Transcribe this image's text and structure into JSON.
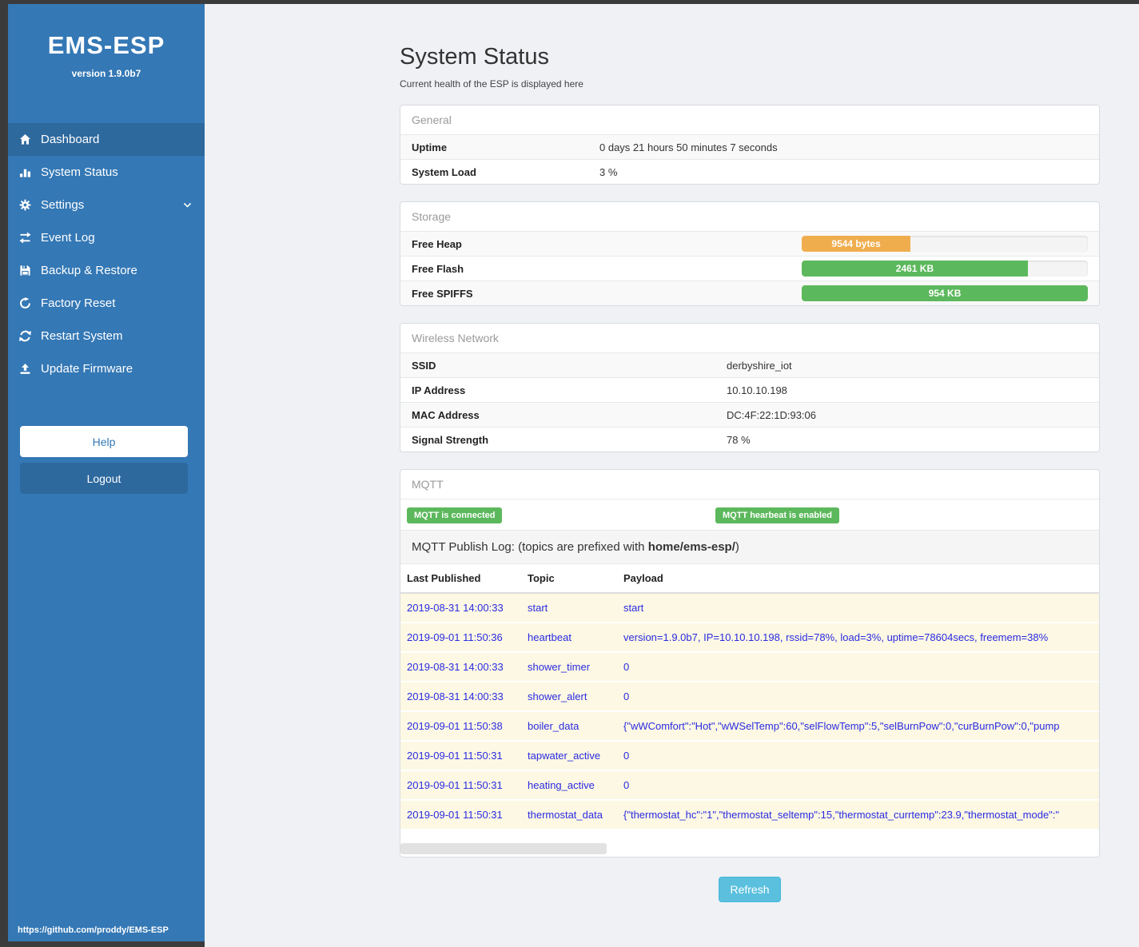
{
  "sidebar": {
    "title": "EMS-ESP",
    "version": "version 1.9.0b7",
    "items": [
      {
        "label": "Dashboard",
        "icon": "home-icon",
        "active": true,
        "chevron": false
      },
      {
        "label": "System Status",
        "icon": "status-icon",
        "active": false,
        "chevron": false
      },
      {
        "label": "Settings",
        "icon": "gear-icon",
        "active": false,
        "chevron": true
      },
      {
        "label": "Event Log",
        "icon": "exchange-icon",
        "active": false,
        "chevron": false
      },
      {
        "label": "Backup & Restore",
        "icon": "save-icon",
        "active": false,
        "chevron": false
      },
      {
        "label": "Factory Reset",
        "icon": "undo-icon",
        "active": false,
        "chevron": false
      },
      {
        "label": "Restart System",
        "icon": "refresh-icon",
        "active": false,
        "chevron": false
      },
      {
        "label": "Update Firmware",
        "icon": "upload-icon",
        "active": false,
        "chevron": false
      }
    ],
    "help_label": "Help",
    "logout_label": "Logout",
    "footer_link": "https://github.com/proddy/EMS-ESP"
  },
  "page": {
    "title": "System Status",
    "subtitle": "Current health of the ESP is displayed here"
  },
  "general": {
    "header": "General",
    "rows": [
      {
        "label": "Uptime",
        "value": "0 days 21 hours 50 minutes 7 seconds"
      },
      {
        "label": "System Load",
        "value": "3 %"
      }
    ]
  },
  "storage": {
    "header": "Storage",
    "rows": [
      {
        "label": "Free Heap",
        "bar_label": "9544 bytes",
        "percent": 38,
        "color": "#f0ad4e"
      },
      {
        "label": "Free Flash",
        "bar_label": "2461 KB",
        "percent": 79,
        "color": "#5cb85c"
      },
      {
        "label": "Free SPIFFS",
        "bar_label": "954 KB",
        "percent": 100,
        "color": "#5cb85c"
      }
    ]
  },
  "wireless": {
    "header": "Wireless Network",
    "rows": [
      {
        "label": "SSID",
        "value": "derbyshire_iot"
      },
      {
        "label": "IP Address",
        "value": "10.10.10.198"
      },
      {
        "label": "MAC Address",
        "value": "DC:4F:22:1D:93:06"
      },
      {
        "label": "Signal Strength",
        "value": "78 %"
      }
    ]
  },
  "mqtt": {
    "header": "MQTT",
    "badges": [
      "MQTT is connected",
      "MQTT hearbeat is enabled"
    ],
    "log_title_prefix": "MQTT Publish Log: (topics are prefixed with ",
    "log_title_bold": "home/ems-esp/",
    "log_title_suffix": ")",
    "table": {
      "columns": [
        "Last Published",
        "Topic",
        "Payload"
      ],
      "rows": [
        [
          "2019-08-31 14:00:33",
          "start",
          "start"
        ],
        [
          "2019-09-01 11:50:36",
          "heartbeat",
          "version=1.9.0b7, IP=10.10.10.198, rssid=78%, load=3%, uptime=78604secs, freemem=38%"
        ],
        [
          "2019-08-31 14:00:33",
          "shower_timer",
          "0"
        ],
        [
          "2019-08-31 14:00:33",
          "shower_alert",
          "0"
        ],
        [
          "2019-09-01 11:50:38",
          "boiler_data",
          "{\"wWComfort\":\"Hot\",\"wWSelTemp\":60,\"selFlowTemp\":5,\"selBurnPow\":0,\"curBurnPow\":0,\"pump"
        ],
        [
          "2019-09-01 11:50:31",
          "tapwater_active",
          "0"
        ],
        [
          "2019-09-01 11:50:31",
          "heating_active",
          "0"
        ],
        [
          "2019-09-01 11:50:31",
          "thermostat_data",
          "{\"thermostat_hc\":\"1\",\"thermostat_seltemp\":15,\"thermostat_currtemp\":23.9,\"thermostat_mode\":\""
        ]
      ]
    }
  },
  "refresh_label": "Refresh",
  "colors": {
    "frame": "#3b3b3b",
    "sidebar": "#3478b5",
    "sidebar_active": "#2e699e",
    "content_bg": "#eff1f5",
    "success": "#5cb85c",
    "warning": "#f0ad4e",
    "info": "#5bc0de",
    "log_row_bg": "#fcf8e3",
    "log_text": "#2b2be2"
  }
}
